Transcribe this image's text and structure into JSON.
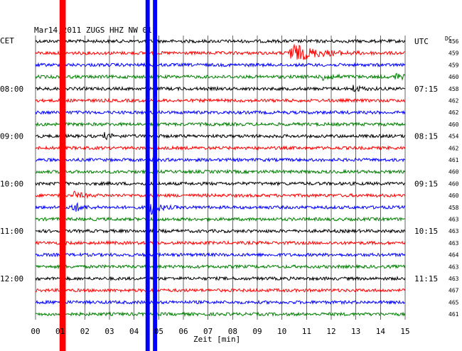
{
  "chart_data": {
    "type": "line",
    "title": "Mar14,2011   ZUGS HHZ NW 01",
    "left_axis_label": "CET",
    "right_axis_label": "UTC",
    "dc_label": "DC",
    "xlabel": "Zeit [min]",
    "xlim": [
      0,
      15
    ],
    "x_ticks": [
      "00",
      "01",
      "02",
      "03",
      "04",
      "05",
      "06",
      "07",
      "08",
      "09",
      "10",
      "11",
      "12",
      "13",
      "14",
      "15"
    ],
    "grid": true,
    "trace_colors": [
      "#000000",
      "#ff0000",
      "#0000ff",
      "#008000"
    ],
    "left_time_labels": [
      {
        "row": 4,
        "label": "08:00"
      },
      {
        "row": 8,
        "label": "09:00"
      },
      {
        "row": 12,
        "label": "10:00"
      },
      {
        "row": 16,
        "label": "11:00"
      },
      {
        "row": 20,
        "label": "12:00"
      }
    ],
    "right_time_labels": [
      {
        "row": 0,
        "label": "UTC"
      },
      {
        "row": 4,
        "label": "07:15"
      },
      {
        "row": 8,
        "label": "08:15"
      },
      {
        "row": 12,
        "label": "09:15"
      },
      {
        "row": 16,
        "label": "10:15"
      },
      {
        "row": 20,
        "label": "11:15"
      }
    ],
    "dc_values": [
      "456",
      "459",
      "459",
      "460",
      "458",
      "462",
      "462",
      "460",
      "454",
      "462",
      "461",
      "460",
      "460",
      "460",
      "458",
      "463",
      "463",
      "463",
      "464",
      "463",
      "463",
      "467",
      "465",
      "461"
    ],
    "events": [
      {
        "row": 1,
        "minute": 10.3,
        "strength": 1.0,
        "decay_min": 0.9
      },
      {
        "row": 3,
        "minute": 11.7,
        "strength": 0.3,
        "decay_min": 0.4
      },
      {
        "row": 3,
        "minute": 14.6,
        "strength": 0.3,
        "decay_min": 0.3
      },
      {
        "row": 4,
        "minute": 12.9,
        "strength": 0.3,
        "decay_min": 0.3
      },
      {
        "row": 8,
        "minute": 2.8,
        "strength": 0.25,
        "decay_min": 0.3
      },
      {
        "row": 13,
        "minute": 1.6,
        "strength": 0.3,
        "decay_min": 0.3
      },
      {
        "row": 14,
        "minute": 1.5,
        "strength": 0.55,
        "decay_min": 0.3
      },
      {
        "row": 14,
        "minute": 4.6,
        "strength": 0.9,
        "decay_min": 0.3
      }
    ],
    "vertical_bars": [
      {
        "minute": 1.1,
        "color": "#ff0000",
        "width_min": 0.25
      },
      {
        "minute": 4.55,
        "color": "#0000ff",
        "width_min": 0.17
      },
      {
        "minute": 4.85,
        "color": "#0000ff",
        "width_min": 0.17
      }
    ]
  }
}
